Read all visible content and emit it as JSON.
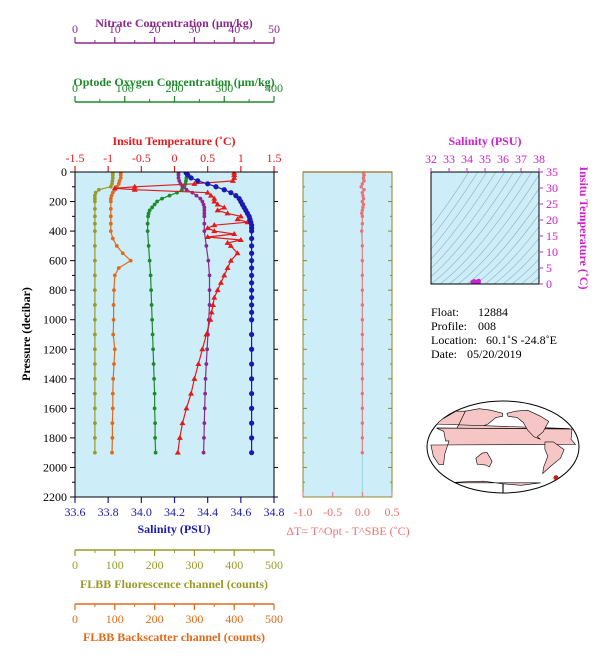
{
  "colors": {
    "nitrate": "#8b2a8b",
    "oxygen": "#1f8a2a",
    "temperature": "#e21a1a",
    "salinity": "#1a1ab0",
    "fluorescence": "#9a9a2a",
    "backscatter": "#e06a1a",
    "delta_t": "#f07070",
    "salinity_inset": "#cc22cc",
    "plot_bg": "#cdeef8",
    "axis": "#000000"
  },
  "chart_data": [
    {
      "type": "line",
      "panel": "main profile",
      "y_axis": {
        "label": "Pressure (decibar)",
        "range": [
          2200,
          0
        ],
        "ticks": [
          "0",
          "200",
          "400",
          "600",
          "800",
          "1000",
          "1200",
          "1400",
          "1600",
          "1800",
          "2000",
          "2200"
        ]
      },
      "axes": {
        "nitrate": {
          "label": "Nitrate Concentration (µm/kg)",
          "range": [
            0,
            50
          ],
          "ticks": [
            "0",
            "10",
            "20",
            "30",
            "40",
            "50"
          ]
        },
        "oxygen": {
          "label": "Optode Oxygen Concentration (µm/kg)",
          "range": [
            0,
            400
          ],
          "ticks": [
            "0",
            "100",
            "200",
            "300",
            "400"
          ]
        },
        "temperature": {
          "label": "Insitu Temperature (˚C)",
          "range": [
            -1.5,
            1.5
          ],
          "ticks": [
            "-1.5",
            "-1",
            "-0.5",
            "0",
            "0.5",
            "1",
            "1.5"
          ]
        },
        "salinity": {
          "label": "Salinity (PSU)",
          "range": [
            33.6,
            34.8
          ],
          "ticks": [
            "33.6",
            "33.8",
            "34.0",
            "34.2",
            "34.4",
            "34.6",
            "34.8"
          ]
        },
        "fluorescence": {
          "label": "FLBB Fluorescence channel (counts)",
          "range": [
            0,
            500
          ],
          "ticks": [
            "0",
            "100",
            "200",
            "300",
            "400",
            "500"
          ]
        },
        "backscatter": {
          "label": "FLBB Backscatter channel (counts)",
          "range": [
            0,
            500
          ],
          "ticks": [
            "0",
            "100",
            "200",
            "300",
            "400",
            "500"
          ]
        }
      },
      "series": {
        "salinity": {
          "p": [
            5,
            20,
            40,
            60,
            80,
            100,
            120,
            140,
            160,
            180,
            200,
            220,
            240,
            260,
            280,
            300,
            320,
            340,
            360,
            380,
            400,
            450,
            500,
            550,
            600,
            650,
            700,
            750,
            800,
            850,
            900,
            950,
            1000,
            1100,
            1200,
            1300,
            1400,
            1500,
            1600,
            1700,
            1800,
            1900
          ],
          "v": [
            34.27,
            34.28,
            34.3,
            34.34,
            34.4,
            34.45,
            34.5,
            34.54,
            34.57,
            34.59,
            34.6,
            34.61,
            34.62,
            34.63,
            34.64,
            34.65,
            34.655,
            34.66,
            34.665,
            34.665,
            34.665,
            34.665,
            34.665,
            34.665,
            34.665,
            34.665,
            34.665,
            34.665,
            34.665,
            34.665,
            34.665,
            34.665,
            34.665,
            34.665,
            34.665,
            34.665,
            34.665,
            34.665,
            34.665,
            34.665,
            34.665,
            34.665
          ]
        },
        "temperature": {
          "p": [
            5,
            20,
            40,
            60,
            80,
            100,
            110,
            120,
            140,
            160,
            180,
            200,
            220,
            240,
            260,
            280,
            300,
            320,
            340,
            360,
            380,
            400,
            420,
            440,
            460,
            480,
            500,
            550,
            600,
            650,
            700,
            750,
            800,
            850,
            900,
            950,
            1000,
            1100,
            1200,
            1300,
            1400,
            1500,
            1600,
            1700,
            1800,
            1900
          ],
          "v": [
            0.9,
            0.9,
            0.9,
            0.88,
            0.3,
            -0.6,
            -0.9,
            -0.6,
            0.5,
            0.55,
            0.6,
            0.6,
            0.65,
            0.75,
            0.65,
            0.8,
            1.0,
            0.95,
            1.1,
            0.6,
            0.5,
            0.6,
            0.9,
            0.5,
            1.0,
            0.8,
            0.85,
            0.95,
            0.85,
            0.8,
            0.75,
            0.7,
            0.65,
            0.6,
            0.58,
            0.56,
            0.54,
            0.48,
            0.42,
            0.36,
            0.3,
            0.25,
            0.18,
            0.12,
            0.08,
            0.05
          ]
        },
        "nitrate": {
          "p": [
            5,
            20,
            40,
            60,
            80,
            100,
            120,
            140,
            160,
            180,
            200,
            220,
            240,
            260,
            280,
            300,
            350,
            400,
            500,
            600,
            700,
            800,
            900,
            1000,
            1100,
            1200,
            1300,
            1400,
            1500,
            1600,
            1700,
            1800,
            1900
          ],
          "v": [
            26.0,
            26.0,
            26.0,
            26.2,
            26.5,
            27.0,
            28.0,
            29.5,
            30.5,
            31.5,
            32.0,
            32.3,
            32.5,
            32.5,
            32.5,
            32.5,
            32.5,
            32.5,
            33.0,
            33.5,
            33.8,
            33.8,
            33.8,
            33.6,
            33.4,
            33.2,
            33.0,
            32.8,
            32.7,
            32.6,
            32.5,
            32.4,
            32.3
          ]
        },
        "oxygen": {
          "p": [
            5,
            20,
            40,
            60,
            80,
            100,
            120,
            140,
            160,
            180,
            200,
            220,
            240,
            260,
            280,
            300,
            350,
            400,
            500,
            600,
            700,
            800,
            900,
            1000,
            1100,
            1200,
            1300,
            1400,
            1500,
            1600,
            1700,
            1800,
            1900
          ],
          "v": [
            225,
            225,
            224,
            223,
            222,
            220,
            215,
            205,
            190,
            175,
            165,
            160,
            155,
            150,
            148,
            147,
            146,
            146,
            148,
            150,
            152,
            153,
            154,
            155,
            156,
            157,
            158,
            159,
            160,
            160,
            161,
            161,
            162
          ]
        },
        "fluorescence": {
          "p": [
            5,
            20,
            40,
            60,
            80,
            100,
            120,
            140,
            160,
            180,
            200,
            250,
            300,
            350,
            400,
            500,
            600,
            700,
            800,
            900,
            1000,
            1100,
            1200,
            1300,
            1400,
            1500,
            1600,
            1700,
            1800,
            1900
          ],
          "v": [
            95,
            95,
            95,
            94,
            93,
            90,
            60,
            52,
            50,
            50,
            50,
            50,
            50,
            50,
            50,
            50,
            50,
            50,
            50,
            50,
            50,
            50,
            50,
            50,
            50,
            50,
            50,
            50,
            50,
            50
          ]
        },
        "backscatter": {
          "p": [
            5,
            20,
            40,
            60,
            80,
            100,
            120,
            140,
            160,
            180,
            200,
            250,
            300,
            350,
            400,
            450,
            500,
            550,
            600,
            650,
            700,
            800,
            900,
            1000,
            1100,
            1200,
            1300,
            1400,
            1500,
            1600,
            1700,
            1800,
            1900
          ],
          "v": [
            115,
            115,
            115,
            112,
            110,
            105,
            100,
            95,
            92,
            90,
            90,
            90,
            90,
            90,
            90,
            95,
            105,
            120,
            140,
            110,
            100,
            98,
            97,
            97,
            96,
            100,
            98,
            96,
            95,
            95,
            94,
            94,
            93
          ]
        }
      }
    },
    {
      "type": "line",
      "panel": "delta T",
      "xlabel": "ΔT= T^Opt - T^SBE (˚C)",
      "x_range": [
        -1.0,
        0.5
      ],
      "x_ticks": [
        "-1.0",
        "-0.5",
        "0.0",
        "0.5"
      ],
      "y_range": [
        2200,
        0
      ],
      "p": [
        5,
        20,
        40,
        60,
        80,
        100,
        120,
        140,
        160,
        180,
        200,
        220,
        240,
        260,
        280,
        300,
        350,
        400,
        500,
        600,
        700,
        800,
        900,
        1000,
        1100,
        1200,
        1300,
        1400,
        1500,
        1600,
        1700,
        1800,
        1900
      ],
      "v": [
        0.02,
        0.03,
        0.02,
        0.03,
        0.0,
        -0.02,
        0.03,
        0.0,
        0.01,
        0.02,
        0.0,
        0.02,
        0.01,
        0.0,
        -0.01,
        0.0,
        0.0,
        -0.01,
        0.0,
        0.0,
        0.0,
        0.0,
        0.0,
        0.0,
        0.0,
        0.0,
        0.0,
        0.0,
        0.0,
        0.0,
        0.0,
        0.0,
        0.0
      ]
    },
    {
      "type": "scatter",
      "panel": "T-S diagram",
      "title": "Salinity (PSU)",
      "x_range": [
        32,
        38
      ],
      "x_ticks": [
        "32",
        "33",
        "34",
        "35",
        "36",
        "37",
        "38"
      ],
      "ylabel": "Insitu Temperature (˚C)",
      "y_range": [
        0,
        35
      ],
      "y_ticks": [
        "0",
        "5",
        "10",
        "15",
        "20",
        "25",
        "30",
        "35"
      ],
      "points": [
        [
          34.3,
          0.6
        ],
        [
          34.4,
          0.9
        ],
        [
          34.45,
          0.4
        ],
        [
          34.6,
          0.8
        ],
        [
          34.65,
          0.9
        ],
        [
          34.65,
          1.0
        ],
        [
          34.66,
          0.5
        ],
        [
          34.62,
          0.3
        ],
        [
          34.55,
          0.7
        ],
        [
          34.5,
          0.2
        ]
      ]
    }
  ],
  "info": {
    "float_label": "Float:",
    "float_value": "12884",
    "profile_label": "Profile:",
    "profile_value": "008",
    "location_label": "Location:",
    "location_value": "60.1˚S  -24.8˚E",
    "date_label": "Date:",
    "date_value": "05/20/2019"
  },
  "map": {
    "marker_lon": -24.8,
    "marker_lat": -60.1
  }
}
